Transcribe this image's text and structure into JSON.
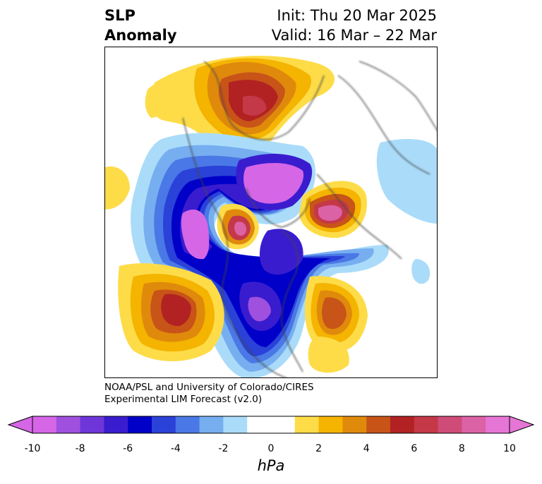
{
  "title": {
    "variable_line1": "SLP",
    "variable_line2": "Anomaly",
    "init": "Init: Thu 20 Mar 2025",
    "valid": "Valid: 16 Mar – 22 Mar"
  },
  "credit": {
    "line1": "NOAA/PSL and University of Colorado/CIRES",
    "line2": "Experimental LIM Forecast (v2.0)"
  },
  "colorbar": {
    "unit": "hPa",
    "tick_labels": [
      "-10",
      "-8",
      "-6",
      "-4",
      "-2",
      "0",
      "2",
      "4",
      "6",
      "8",
      "10"
    ],
    "colors": [
      "#d566e6",
      "#a050de",
      "#6e36d8",
      "#3a1ccf",
      "#0000c8",
      "#2a42d8",
      "#4a78e6",
      "#76aef0",
      "#aadcfa",
      "#ffffff",
      "#ffffff",
      "#fddc48",
      "#f4b400",
      "#e08a0c",
      "#c85418",
      "#b22222",
      "#c43848",
      "#d04c78",
      "#dc62a6",
      "#e676d6"
    ]
  }
}
